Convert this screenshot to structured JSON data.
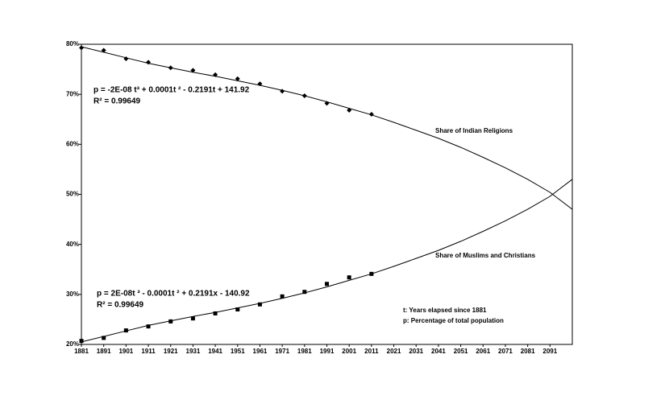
{
  "chart_data": {
    "type": "scatter-trend",
    "x": [
      1881,
      1891,
      1901,
      1911,
      1921,
      1931,
      1941,
      1951,
      1961,
      1971,
      1981,
      1991,
      2001,
      2011,
      2021,
      2031,
      2041,
      2051,
      2061,
      2071,
      2081,
      2091,
      2101
    ],
    "xlim": [
      1881,
      2101
    ],
    "xticks": [
      1881,
      1891,
      1901,
      1911,
      1921,
      1931,
      1941,
      1951,
      1961,
      1971,
      1981,
      1991,
      2001,
      2011,
      2021,
      2031,
      2041,
      2051,
      2061,
      2071,
      2081,
      2091
    ],
    "ylim": [
      20,
      80
    ],
    "yticks": [
      {
        "value": 20,
        "label": "20%"
      },
      {
        "value": 30,
        "label": "30%"
      },
      {
        "value": 40,
        "label": "40%"
      },
      {
        "value": 50,
        "label": "50%"
      },
      {
        "value": 60,
        "label": "60%"
      },
      {
        "value": 70,
        "label": "70%"
      },
      {
        "value": 80,
        "label": "80%"
      }
    ],
    "series": [
      {
        "name": "Share of Indian Religions",
        "color": "#000000",
        "marker": "diamond",
        "values": [
          79.3,
          78.8,
          77.1,
          76.4,
          75.3,
          74.8,
          73.9,
          73.1,
          72.1,
          70.6,
          69.7,
          68.2,
          66.8,
          66.0,
          null,
          null,
          null,
          null,
          null,
          null,
          null,
          null,
          null
        ],
        "trend": [
          79.5,
          78.4,
          77.3,
          76.2,
          75.3,
          74.4,
          73.6,
          72.7,
          71.8,
          70.8,
          69.7,
          68.5,
          67.2,
          65.9,
          64.4,
          62.8,
          61.2,
          59.4,
          57.4,
          55.3,
          53.0,
          50.4,
          47.0
        ],
        "equation": "p = -2E-08 t³ + 0.0001t ² - 0.2191t + 141.92",
        "r2": "R² = 0.99649"
      },
      {
        "name": "Share of Muslims and Christians",
        "color": "#000000",
        "marker": "square",
        "values": [
          20.7,
          21.3,
          22.8,
          23.6,
          24.6,
          25.2,
          26.2,
          27.0,
          28.0,
          29.6,
          30.5,
          32.1,
          33.4,
          34.1,
          null,
          null,
          null,
          null,
          null,
          null,
          null,
          null,
          null
        ],
        "trend": [
          20.5,
          21.6,
          22.7,
          23.8,
          24.7,
          25.6,
          26.4,
          27.3,
          28.2,
          29.2,
          30.3,
          31.5,
          32.8,
          34.1,
          35.6,
          37.2,
          38.8,
          40.6,
          42.6,
          44.7,
          47.0,
          49.6,
          53.0
        ],
        "equation": "p = 2E-08t ³ - 0.0001t ² + 0.2191x - 140.92",
        "r2": "R² = 0.99649"
      }
    ],
    "annotations": [
      "t: Years elapsed since 1881",
      "p: Percentage of total population"
    ]
  }
}
